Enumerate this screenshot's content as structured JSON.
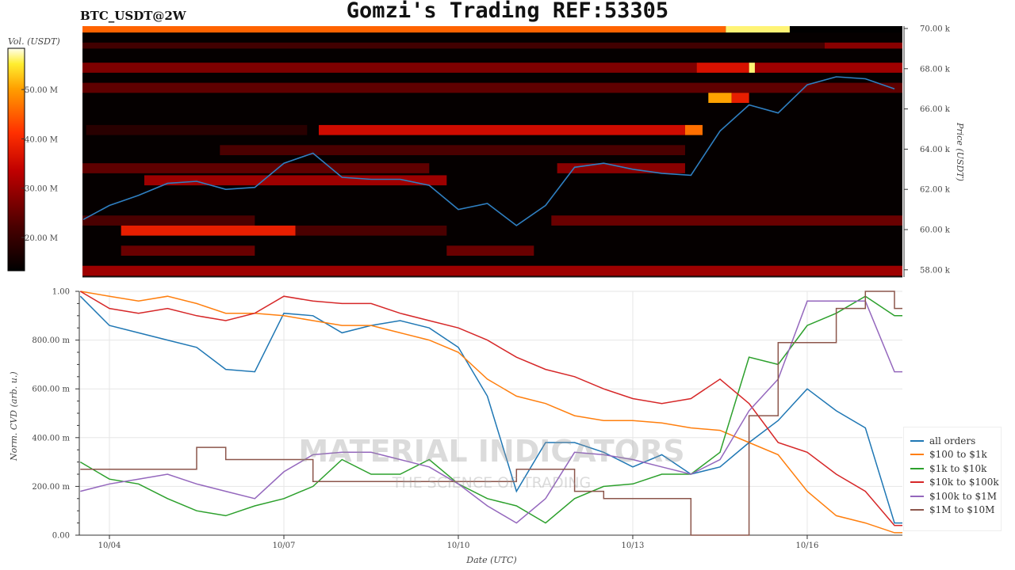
{
  "header": {
    "title": "Gomzi's Trading REF:53305",
    "pair": "BTC_USDT@2W"
  },
  "watermark": {
    "line1": "MATERIAL INDICATORS",
    "line2": "THE SCIENCE OF TRADING"
  },
  "chart_data": [
    {
      "type": "heatmap",
      "title": "BTC_USDT@2W",
      "ylabel": "Price (USDT)",
      "colorbar_label": "Vol. (USDT)",
      "colorbar_ticks": [
        "20.00 M",
        "30.00 M",
        "40.00 M",
        "50.00 M"
      ],
      "colorbar_range_M": [
        13,
        58
      ],
      "y_ticks": [
        "58.00 k",
        "60.00 k",
        "62.00 k",
        "64.00 k",
        "66.00 k",
        "68.00 k",
        "70.00 k"
      ],
      "ylim_k": [
        57.8,
        70.1
      ],
      "x_range_days": [
        "10/03 12:00",
        "10/17 15:00"
      ],
      "cells_note_units": "[price_low_k, price_high_k, day_from, day_to, volume_M]",
      "cells": [
        [
          69.8,
          70.2,
          3.5,
          14.6,
          45
        ],
        [
          69.8,
          70.2,
          14.6,
          15.7,
          56
        ],
        [
          69.8,
          70.2,
          15.7,
          17.64,
          13
        ],
        [
          69.0,
          69.3,
          3.5,
          16.3,
          21
        ],
        [
          69.0,
          69.3,
          16.3,
          17.64,
          28
        ],
        [
          67.8,
          68.3,
          3.5,
          14.1,
          27
        ],
        [
          67.8,
          68.3,
          14.1,
          15.0,
          36
        ],
        [
          67.8,
          68.3,
          15.0,
          15.1,
          56
        ],
        [
          67.8,
          68.3,
          15.1,
          17.64,
          30
        ],
        [
          66.8,
          67.3,
          3.5,
          17.64,
          24
        ],
        [
          66.3,
          66.8,
          14.3,
          14.7,
          50
        ],
        [
          66.3,
          66.8,
          14.7,
          15.0,
          38
        ],
        [
          64.7,
          65.2,
          3.6,
          7.4,
          18
        ],
        [
          64.7,
          65.2,
          7.6,
          13.9,
          35
        ],
        [
          64.7,
          65.2,
          13.9,
          14.2,
          46
        ],
        [
          63.7,
          64.2,
          5.9,
          13.9,
          22
        ],
        [
          62.8,
          63.3,
          3.5,
          9.5,
          24
        ],
        [
          62.8,
          63.3,
          11.7,
          13.9,
          28
        ],
        [
          62.2,
          62.7,
          4.6,
          9.8,
          30
        ],
        [
          60.2,
          60.7,
          3.5,
          6.5,
          22
        ],
        [
          60.2,
          60.7,
          11.6,
          17.64,
          25
        ],
        [
          59.7,
          60.2,
          4.2,
          7.2,
          38
        ],
        [
          59.7,
          60.2,
          7.2,
          9.8,
          22
        ],
        [
          58.7,
          59.2,
          4.2,
          6.5,
          25
        ],
        [
          58.7,
          59.2,
          9.8,
          11.3,
          25
        ],
        [
          57.7,
          58.2,
          3.5,
          17.64,
          30
        ]
      ],
      "price_series": {
        "days": [
          3.5,
          4,
          4.5,
          5,
          5.5,
          6,
          6.5,
          7,
          7.5,
          8,
          8.5,
          9,
          9.5,
          10,
          10.5,
          11,
          11.5,
          12,
          12.5,
          13,
          13.5,
          14,
          14.5,
          15,
          15.5,
          16,
          16.5,
          17,
          17.5
        ],
        "values_k": [
          60.5,
          61.2,
          61.7,
          62.3,
          62.4,
          62.0,
          62.1,
          63.3,
          63.8,
          62.6,
          62.5,
          62.5,
          62.2,
          61.0,
          61.3,
          60.2,
          61.2,
          63.1,
          63.3,
          63.0,
          62.8,
          62.7,
          64.9,
          66.2,
          65.8,
          67.2,
          67.6,
          67.5,
          67.0
        ]
      },
      "series_color": "#2f7fc1"
    },
    {
      "type": "line",
      "xlabel": "Date (UTC)",
      "ylabel": "Norm. CVD (arb. u.)",
      "x_ticks": [
        "10/04",
        "10/07",
        "10/10",
        "10/13",
        "10/16"
      ],
      "y_ticks": [
        "0.00",
        "200.00 m",
        "400.00 m",
        "600.00 m",
        "800.00 m",
        "1.00"
      ],
      "ylim": [
        0,
        1
      ],
      "grid": true,
      "legend": "right",
      "x_days": [
        3.5,
        4,
        4.5,
        5,
        5.5,
        6,
        6.5,
        7,
        7.5,
        8,
        8.5,
        9,
        9.5,
        10,
        10.5,
        11,
        11.5,
        12,
        12.5,
        13,
        13.5,
        14,
        14.5,
        15,
        15.5,
        16,
        16.5,
        17,
        17.5
      ],
      "series": [
        {
          "name": "all orders",
          "color": "#1f77b4",
          "values": [
            0.98,
            0.86,
            0.83,
            0.8,
            0.77,
            0.68,
            0.67,
            0.91,
            0.9,
            0.83,
            0.86,
            0.88,
            0.85,
            0.77,
            0.57,
            0.18,
            0.38,
            0.38,
            0.34,
            0.28,
            0.33,
            0.25,
            0.28,
            0.38,
            0.47,
            0.6,
            0.51,
            0.44,
            0.05
          ]
        },
        {
          "name": "$100 to $1k",
          "color": "#ff7f0e",
          "values": [
            1.0,
            0.98,
            0.96,
            0.98,
            0.95,
            0.91,
            0.91,
            0.9,
            0.88,
            0.86,
            0.86,
            0.83,
            0.8,
            0.75,
            0.64,
            0.57,
            0.54,
            0.49,
            0.47,
            0.47,
            0.46,
            0.44,
            0.43,
            0.38,
            0.33,
            0.18,
            0.08,
            0.05,
            0.01
          ]
        },
        {
          "name": "$1k to $10k",
          "color": "#2ca02c",
          "values": [
            0.3,
            0.23,
            0.21,
            0.15,
            0.1,
            0.08,
            0.12,
            0.15,
            0.2,
            0.31,
            0.25,
            0.25,
            0.31,
            0.21,
            0.15,
            0.12,
            0.05,
            0.15,
            0.2,
            0.21,
            0.25,
            0.25,
            0.34,
            0.73,
            0.7,
            0.86,
            0.91,
            0.98,
            0.9
          ]
        },
        {
          "name": "$10k to $100k",
          "color": "#d62728",
          "values": [
            1.0,
            0.93,
            0.91,
            0.93,
            0.9,
            0.88,
            0.91,
            0.98,
            0.96,
            0.95,
            0.95,
            0.91,
            0.88,
            0.85,
            0.8,
            0.73,
            0.68,
            0.65,
            0.6,
            0.56,
            0.54,
            0.56,
            0.64,
            0.54,
            0.38,
            0.34,
            0.25,
            0.18,
            0.04
          ]
        },
        {
          "name": "$100k to $1M",
          "color": "#9467bd",
          "values": [
            0.18,
            0.21,
            0.23,
            0.25,
            0.21,
            0.18,
            0.15,
            0.26,
            0.33,
            0.34,
            0.34,
            0.31,
            0.28,
            0.21,
            0.12,
            0.05,
            0.15,
            0.34,
            0.33,
            0.31,
            0.28,
            0.25,
            0.31,
            0.51,
            0.64,
            0.96,
            0.96,
            0.96,
            0.67
          ]
        },
        {
          "name": "$1M to $10M",
          "color": "#8c564b",
          "step": true,
          "values": [
            0.27,
            0.27,
            0.27,
            0.27,
            0.36,
            0.31,
            0.31,
            0.31,
            0.22,
            0.22,
            0.22,
            0.22,
            0.22,
            0.22,
            0.22,
            0.27,
            0.27,
            0.18,
            0.15,
            0.15,
            0.15,
            0.0,
            0.0,
            0.49,
            0.79,
            0.79,
            0.93,
            1.0,
            0.93
          ]
        }
      ]
    }
  ]
}
